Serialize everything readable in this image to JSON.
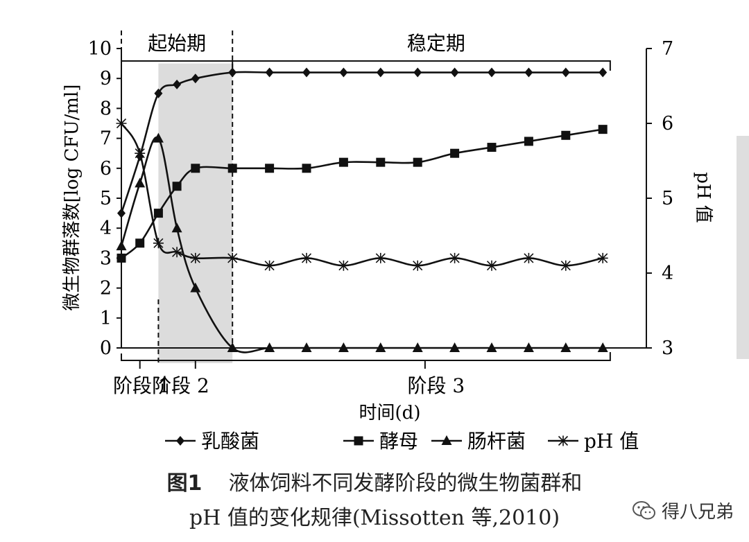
{
  "chart_data": {
    "type": "line",
    "x": [
      0,
      1,
      2,
      3,
      4,
      5,
      6,
      7,
      8,
      9,
      10,
      11,
      12,
      13
    ],
    "ylabel": "微生物群落数[log CFU/ml]",
    "y2label": "pH 值",
    "xlabel": "时间(d)",
    "ylim": [
      0,
      10
    ],
    "y2lim": [
      3,
      7
    ],
    "yticks": [
      "0",
      "1",
      "2",
      "3",
      "4",
      "5",
      "6",
      "7",
      "8",
      "9",
      "10"
    ],
    "y2ticks": [
      "3",
      "4",
      "5",
      "6",
      "7"
    ],
    "grid": false,
    "legend_position": "bottom",
    "series": [
      {
        "name": "乳酸菌",
        "marker": "diamond",
        "axis": "left",
        "x": [
          0,
          0.5,
          1,
          1.5,
          2,
          3,
          4,
          5,
          6,
          7,
          8,
          9,
          10,
          11,
          12,
          13
        ],
        "values": [
          4.5,
          6.4,
          8.5,
          8.8,
          9.0,
          9.2,
          9.2,
          9.2,
          9.2,
          9.2,
          9.2,
          9.2,
          9.2,
          9.2,
          9.2,
          9.2
        ]
      },
      {
        "name": "酵母",
        "marker": "square",
        "axis": "left",
        "x": [
          0,
          0.5,
          1,
          1.5,
          2,
          3,
          4,
          5,
          6,
          7,
          8,
          9,
          10,
          11,
          12,
          13
        ],
        "values": [
          3.0,
          3.5,
          4.5,
          5.4,
          6.0,
          6.0,
          6.0,
          6.0,
          6.2,
          6.2,
          6.2,
          6.5,
          6.7,
          6.9,
          7.1,
          7.3
        ]
      },
      {
        "name": "肠杆菌",
        "marker": "triangle",
        "axis": "left",
        "x": [
          0,
          0.5,
          1,
          1.5,
          2,
          3,
          4,
          5,
          6,
          7,
          8,
          9,
          10,
          11,
          12,
          13
        ],
        "values": [
          3.4,
          5.5,
          7.0,
          4.0,
          2.0,
          0,
          0,
          0,
          0,
          0,
          0,
          0,
          0,
          0,
          0,
          0
        ]
      },
      {
        "name": "pH 值",
        "marker": "star",
        "axis": "right",
        "x": [
          0,
          0.5,
          1,
          1.5,
          2,
          3,
          4,
          5,
          6,
          7,
          8,
          9,
          10,
          11,
          12,
          13
        ],
        "values": [
          6.0,
          5.6,
          4.4,
          4.28,
          4.2,
          4.2,
          4.1,
          4.2,
          4.1,
          4.2,
          4.1,
          4.2,
          4.1,
          4.2,
          4.1,
          4.2
        ]
      }
    ],
    "phases": {
      "top": [
        {
          "label": "起始期",
          "x_start": 0,
          "x_end": 3
        },
        {
          "label": "稳定期",
          "x_start": 3,
          "x_end": 13.2
        }
      ],
      "bottom": [
        {
          "label": "阶段 1",
          "x_start": 0,
          "x_end": 1
        },
        {
          "label": "阶段 2",
          "x_start": 1,
          "x_end": 3
        },
        {
          "label": "阶段 3",
          "x_start": 3,
          "x_end": 13.2
        }
      ],
      "shaded_region": [
        1,
        3
      ]
    },
    "colors": {
      "line": "#111111",
      "shade": "#dcdcdc"
    }
  },
  "caption": {
    "figure_number": "图1",
    "line1": "液体饲料不同发酵阶段的微生物菌群和",
    "line2": "pH 值的变化规律(Missotten 等,2010)"
  },
  "watermark": {
    "text": "得八兄弟",
    "icon": "wechat-icon"
  }
}
